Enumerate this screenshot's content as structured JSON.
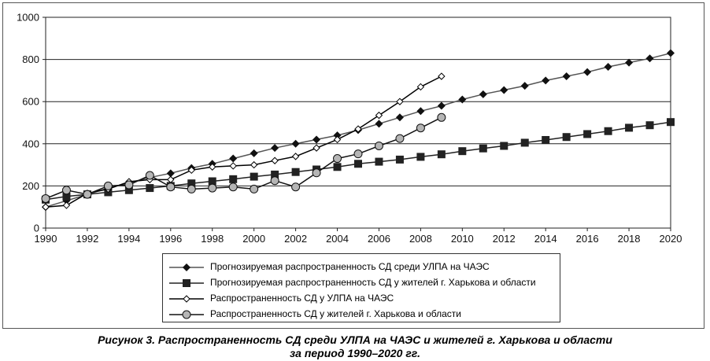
{
  "chart_data": {
    "type": "line",
    "title": "",
    "xlabel": "",
    "ylabel": "",
    "xlim": [
      1990,
      2020
    ],
    "ylim": [
      0,
      1000
    ],
    "x_ticks": [
      "1990",
      "1992",
      "1994",
      "1996",
      "1998",
      "2000",
      "2002",
      "2004",
      "2006",
      "2008",
      "2010",
      "2012",
      "2014",
      "2016",
      "2018",
      "2020"
    ],
    "y_ticks": [
      "0",
      "200",
      "400",
      "600",
      "800",
      "1000"
    ],
    "grid": "horizontal",
    "legend_position": "bottom",
    "series": [
      {
        "name": "Прогнозируемая распространенность СД среди УЛПА на ЧАЭС",
        "marker": "diamond-filled",
        "color": "#555555",
        "x": [
          1990,
          1991,
          1992,
          1993,
          1994,
          1995,
          1996,
          1997,
          1998,
          1999,
          2000,
          2001,
          2002,
          2003,
          2004,
          2005,
          2006,
          2007,
          2008,
          2009,
          2010,
          2011,
          2012,
          2013,
          2014,
          2015,
          2016,
          2017,
          2018,
          2019,
          2020
        ],
        "y": [
          100,
          130,
          160,
          190,
          215,
          240,
          260,
          285,
          305,
          330,
          355,
          380,
          400,
          420,
          440,
          465,
          495,
          525,
          555,
          580,
          610,
          635,
          655,
          675,
          700,
          720,
          740,
          765,
          785,
          805,
          830
        ]
      },
      {
        "name": "Прогнозируемая распространенность СД у жителей г. Харькова и области",
        "marker": "square-filled",
        "color": "#222222",
        "x": [
          1990,
          1991,
          1992,
          1993,
          1994,
          1995,
          1996,
          1997,
          1998,
          1999,
          2000,
          2001,
          2002,
          2003,
          2004,
          2005,
          2006,
          2007,
          2008,
          2009,
          2010,
          2011,
          2012,
          2013,
          2014,
          2015,
          2016,
          2017,
          2018,
          2019,
          2020
        ],
        "y": [
          135,
          150,
          160,
          170,
          180,
          190,
          200,
          212,
          222,
          232,
          244,
          254,
          266,
          278,
          290,
          305,
          315,
          325,
          338,
          350,
          365,
          378,
          390,
          405,
          418,
          432,
          446,
          460,
          476,
          488,
          503
        ]
      },
      {
        "name": "Распространенность СД у УЛПА на ЧАЭС",
        "marker": "diamond-open",
        "color": "#000000",
        "x": [
          1990,
          1991,
          1992,
          1993,
          1994,
          1995,
          1996,
          1997,
          1998,
          1999,
          2000,
          2001,
          2002,
          2003,
          2004,
          2005,
          2006,
          2007,
          2008,
          2009
        ],
        "y": [
          100,
          108,
          165,
          185,
          220,
          230,
          230,
          275,
          290,
          295,
          300,
          320,
          340,
          380,
          420,
          470,
          535,
          600,
          670,
          720
        ]
      },
      {
        "name": "Распространенность СД у жителей г. Харькова и области",
        "marker": "circle-filled-gray",
        "color": "#111111",
        "x": [
          1990,
          1991,
          1992,
          1993,
          1994,
          1995,
          1996,
          1997,
          1998,
          1999,
          2000,
          2001,
          2002,
          2003,
          2004,
          2005,
          2006,
          2007,
          2008,
          2009
        ],
        "y": [
          140,
          180,
          160,
          200,
          205,
          250,
          195,
          185,
          190,
          195,
          185,
          225,
          195,
          262,
          330,
          352,
          390,
          425,
          475,
          525
        ]
      }
    ]
  },
  "caption": {
    "line1": "Рисунок 3. Распространенность СД среди УЛПА на ЧАЭС и жителей г. Харькова и области",
    "line2": "за период 1990–2020 гг."
  }
}
